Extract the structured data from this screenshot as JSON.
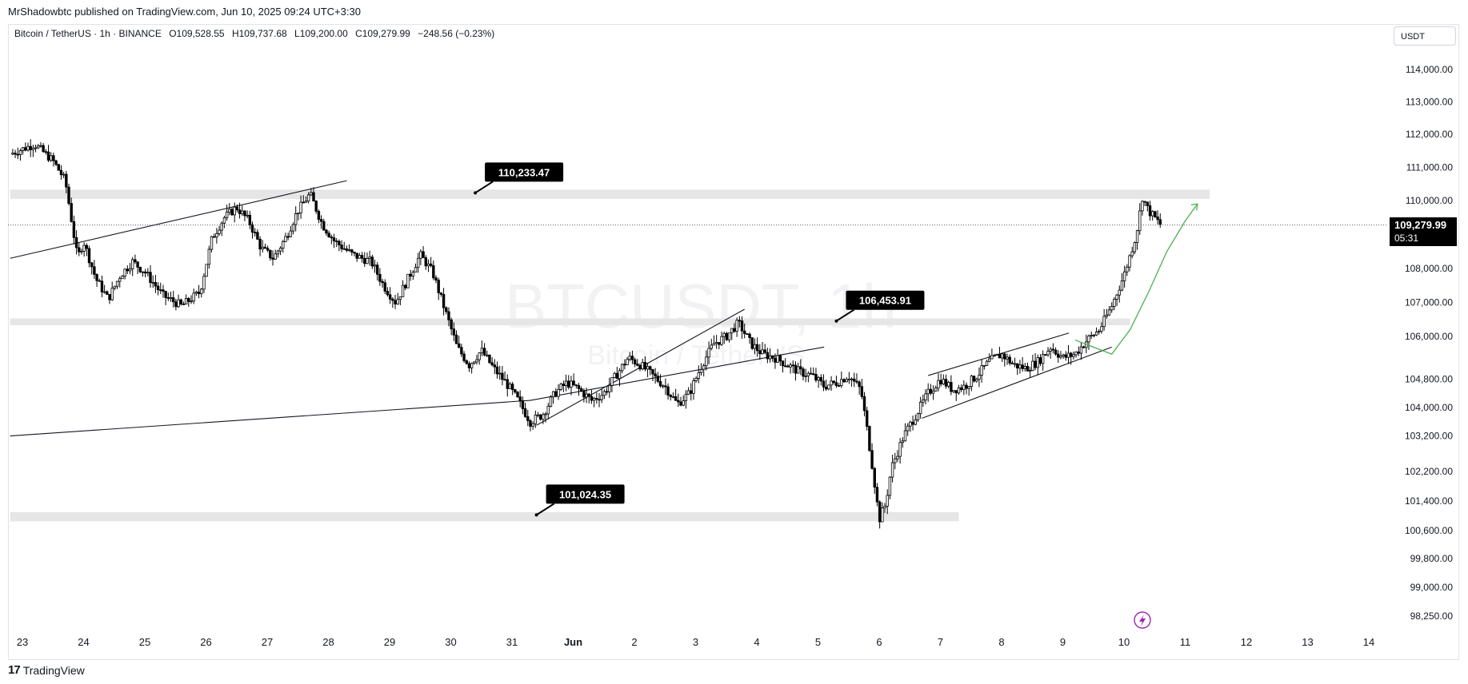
{
  "header": {
    "published_by": "MrShadowbtc published on TradingView.com, Jun 10, 2025 09:24 UTC+3:30"
  },
  "symbol_bar": {
    "name": "Bitcoin / TetherUS · 1h · BINANCE",
    "open": "O109,528.55",
    "high": "H109,737.68",
    "low": "L109,200.00",
    "close": "C109,279.99",
    "change": "−248.56 (−0.23%)"
  },
  "currency_button": "USDT",
  "watermark": {
    "symbol": "BTCUSDT, 1h",
    "name": "Bitcoin / TetherUS"
  },
  "last_price": {
    "value": "109,279.99",
    "countdown": "05:31"
  },
  "footer": {
    "brand": "TradingView",
    "logo_glyph": "17"
  },
  "colors": {
    "candle": "#000000",
    "zone": "#e6e6e6",
    "callout_bg": "#000000",
    "arrow": "#4caf50",
    "accent_icon": "#9c27b0"
  },
  "chart_data": {
    "type": "candlestick",
    "symbol": "BTCUSDT",
    "interval": "1h",
    "ylim": [
      97800,
      114800
    ],
    "y_ticks": [
      {
        "value": 114000,
        "label": "114,000.00"
      },
      {
        "value": 113000,
        "label": "113,000.00"
      },
      {
        "value": 112000,
        "label": "112,000.00"
      },
      {
        "value": 111000,
        "label": "111,000.00"
      },
      {
        "value": 110000,
        "label": "110,000.00"
      },
      {
        "value": 108000,
        "label": "108,000.00"
      },
      {
        "value": 107000,
        "label": "107,000.00"
      },
      {
        "value": 106000,
        "label": "106,000.00"
      },
      {
        "value": 104800,
        "label": "104,800.00"
      },
      {
        "value": 104000,
        "label": "104,000.00"
      },
      {
        "value": 103200,
        "label": "103,200.00"
      },
      {
        "value": 102200,
        "label": "102,200.00"
      },
      {
        "value": 101400,
        "label": "101,400.00"
      },
      {
        "value": 100600,
        "label": "100,600.00"
      },
      {
        "value": 99800,
        "label": "99,800.00"
      },
      {
        "value": 99000,
        "label": "99,000.00"
      },
      {
        "value": 98250,
        "label": "98,250.00"
      }
    ],
    "x_ticks": [
      "23",
      "24",
      "25",
      "26",
      "27",
      "28",
      "29",
      "30",
      "31",
      "Jun",
      "2",
      "3",
      "4",
      "5",
      "6",
      "7",
      "8",
      "9",
      "10",
      "11",
      "12",
      "13",
      "14"
    ],
    "x_tick_days": [
      0,
      1,
      2,
      3,
      4,
      5,
      6,
      7,
      8,
      9,
      10,
      11,
      12,
      13,
      14,
      15,
      16,
      17,
      18,
      19,
      20,
      21,
      22
    ],
    "price_path": [
      [
        -0.2,
        111400
      ],
      [
        0.2,
        111700
      ],
      [
        0.5,
        111200
      ],
      [
        0.7,
        110600
      ],
      [
        0.9,
        108300
      ],
      [
        1.0,
        108800
      ],
      [
        1.2,
        107700
      ],
      [
        1.4,
        107100
      ],
      [
        1.6,
        107800
      ],
      [
        1.8,
        108200
      ],
      [
        2.0,
        107900
      ],
      [
        2.3,
        107200
      ],
      [
        2.6,
        106900
      ],
      [
        2.9,
        107300
      ],
      [
        3.1,
        108900
      ],
      [
        3.3,
        109500
      ],
      [
        3.5,
        109800
      ],
      [
        3.7,
        109400
      ],
      [
        3.9,
        108600
      ],
      [
        4.1,
        108300
      ],
      [
        4.3,
        108900
      ],
      [
        4.5,
        109700
      ],
      [
        4.7,
        110200
      ],
      [
        4.9,
        109300
      ],
      [
        5.1,
        108800
      ],
      [
        5.4,
        108400
      ],
      [
        5.7,
        108200
      ],
      [
        5.9,
        107500
      ],
      [
        6.1,
        107000
      ],
      [
        6.3,
        107700
      ],
      [
        6.5,
        108400
      ],
      [
        6.7,
        107900
      ],
      [
        6.9,
        106800
      ],
      [
        7.1,
        105700
      ],
      [
        7.3,
        105200
      ],
      [
        7.5,
        105600
      ],
      [
        7.7,
        105100
      ],
      [
        7.9,
        104700
      ],
      [
        8.1,
        104200
      ],
      [
        8.3,
        103600
      ],
      [
        8.5,
        103800
      ],
      [
        8.7,
        104400
      ],
      [
        8.9,
        104700
      ],
      [
        9.1,
        104500
      ],
      [
        9.3,
        104200
      ],
      [
        9.5,
        104400
      ],
      [
        9.7,
        104900
      ],
      [
        9.9,
        105400
      ],
      [
        10.1,
        105200
      ],
      [
        10.3,
        104900
      ],
      [
        10.5,
        104600
      ],
      [
        10.7,
        104100
      ],
      [
        10.9,
        104400
      ],
      [
        11.1,
        105200
      ],
      [
        11.3,
        105800
      ],
      [
        11.5,
        106000
      ],
      [
        11.7,
        106400
      ],
      [
        11.9,
        105800
      ],
      [
        12.1,
        105500
      ],
      [
        12.3,
        105400
      ],
      [
        12.5,
        105200
      ],
      [
        12.7,
        105000
      ],
      [
        12.9,
        104900
      ],
      [
        13.1,
        104600
      ],
      [
        13.3,
        104700
      ],
      [
        13.5,
        104900
      ],
      [
        13.7,
        104500
      ],
      [
        13.8,
        103400
      ],
      [
        13.9,
        102200
      ],
      [
        14.0,
        100900
      ],
      [
        14.1,
        101300
      ],
      [
        14.2,
        102300
      ],
      [
        14.4,
        103200
      ],
      [
        14.6,
        103800
      ],
      [
        14.8,
        104400
      ],
      [
        15.0,
        104800
      ],
      [
        15.2,
        104500
      ],
      [
        15.4,
        104600
      ],
      [
        15.6,
        104900
      ],
      [
        15.8,
        105300
      ],
      [
        16.0,
        105500
      ],
      [
        16.2,
        105200
      ],
      [
        16.4,
        105100
      ],
      [
        16.6,
        105300
      ],
      [
        16.8,
        105700
      ],
      [
        17.0,
        105400
      ],
      [
        17.2,
        105500
      ],
      [
        17.4,
        105900
      ],
      [
        17.6,
        106200
      ],
      [
        17.8,
        106900
      ],
      [
        18.0,
        107800
      ],
      [
        18.1,
        108400
      ],
      [
        18.2,
        109000
      ],
      [
        18.3,
        110100
      ],
      [
        18.4,
        109700
      ],
      [
        18.5,
        109500
      ],
      [
        18.6,
        109280
      ]
    ],
    "zones": [
      {
        "from_day": -0.2,
        "to_day": 19.4,
        "low": 110050,
        "high": 110330
      },
      {
        "from_day": -0.2,
        "to_day": 18.1,
        "low": 106330,
        "high": 106530
      },
      {
        "from_day": -0.2,
        "to_day": 15.3,
        "low": 100850,
        "high": 101100
      }
    ],
    "callouts": [
      {
        "label": "110,233.47",
        "day": 7.4,
        "price": 110233
      },
      {
        "label": "106,453.91",
        "day": 13.3,
        "price": 106454
      },
      {
        "label": "101,024.35",
        "day": 8.4,
        "price": 101024
      }
    ],
    "trendlines": [
      [
        [
          -0.2,
          108300
        ],
        [
          5.3,
          110600
        ]
      ],
      [
        [
          -0.2,
          103200
        ],
        [
          8.3,
          104200
        ]
      ],
      [
        [
          8.4,
          103500
        ],
        [
          11.8,
          106800
        ]
      ],
      [
        [
          8.3,
          104200
        ],
        [
          13.1,
          105700
        ]
      ],
      [
        [
          14.7,
          103700
        ],
        [
          17.8,
          105700
        ]
      ],
      [
        [
          14.8,
          104900
        ],
        [
          17.1,
          106100
        ]
      ]
    ],
    "projection": [
      [
        17.2,
        105900
      ],
      [
        17.5,
        105700
      ],
      [
        17.8,
        105500
      ],
      [
        18.1,
        106200
      ],
      [
        18.4,
        107300
      ],
      [
        18.7,
        108500
      ],
      [
        19.0,
        109400
      ],
      [
        19.2,
        109900
      ]
    ],
    "last_price_value": 109279.99
  }
}
